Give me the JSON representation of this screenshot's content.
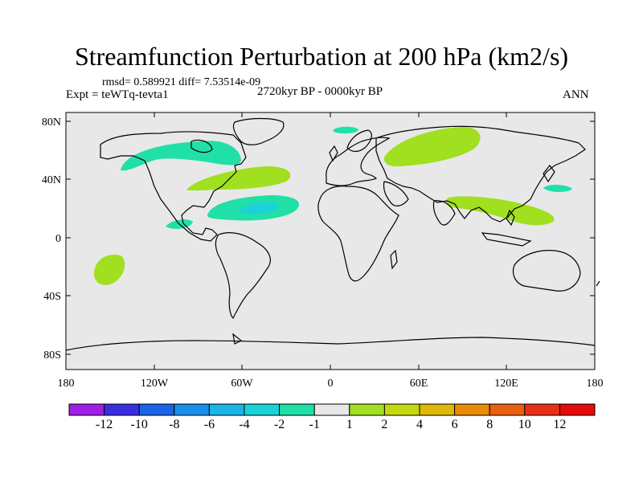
{
  "title": "Streamfunction Perturbation at 200 hPa (km2/s)",
  "stats": "rmsd= 0.589921 diff= 7.53514e-09",
  "experiment": "Expt = teWTq-tevta1",
  "period": "2720kyr BP - 0000kyr BP",
  "season": "ANN",
  "axes": {
    "lon_ticks": [
      "180",
      "120W",
      "60W",
      "0",
      "60E",
      "120E",
      "180"
    ],
    "lat_ticks": [
      "80N",
      "40N",
      "0",
      "40S",
      "80S"
    ]
  },
  "colorbar": {
    "colors": [
      "#9e1fe6",
      "#3a2fe0",
      "#1a64e6",
      "#1a8ee8",
      "#1ab4e8",
      "#1ad2d8",
      "#20e0a8",
      "#e8e8e8",
      "#a0e020",
      "#c4d80e",
      "#e0b808",
      "#e88c08",
      "#e86010",
      "#e83018",
      "#e60a0a"
    ],
    "labels": [
      "-12",
      "-10",
      "-8",
      "-6",
      "-4",
      "-2",
      "-1",
      "1",
      "2",
      "4",
      "6",
      "8",
      "10",
      "12"
    ]
  },
  "colors": {
    "background": "#e8e8e8",
    "coast": "#000000"
  }
}
